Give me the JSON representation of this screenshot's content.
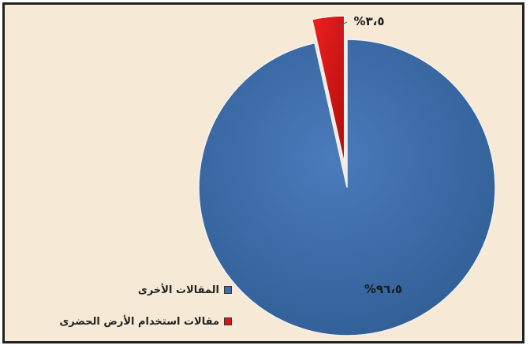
{
  "chart_data": {
    "type": "pie",
    "series": [
      {
        "name": "المقالات الأخرى",
        "value": 96.5,
        "label": "%٩٦،٥",
        "color": "#3d6da8"
      },
      {
        "name": "مقالات استخدام الأرض الحضرى",
        "value": 3.5,
        "label": "%٣،٥",
        "color": "#d81818"
      }
    ],
    "legend": "bottom-left",
    "exploded_slice": "مقالات استخدام الأرض الحضرى"
  },
  "colors": {
    "background": "#f6ead7",
    "border": "#222222"
  }
}
